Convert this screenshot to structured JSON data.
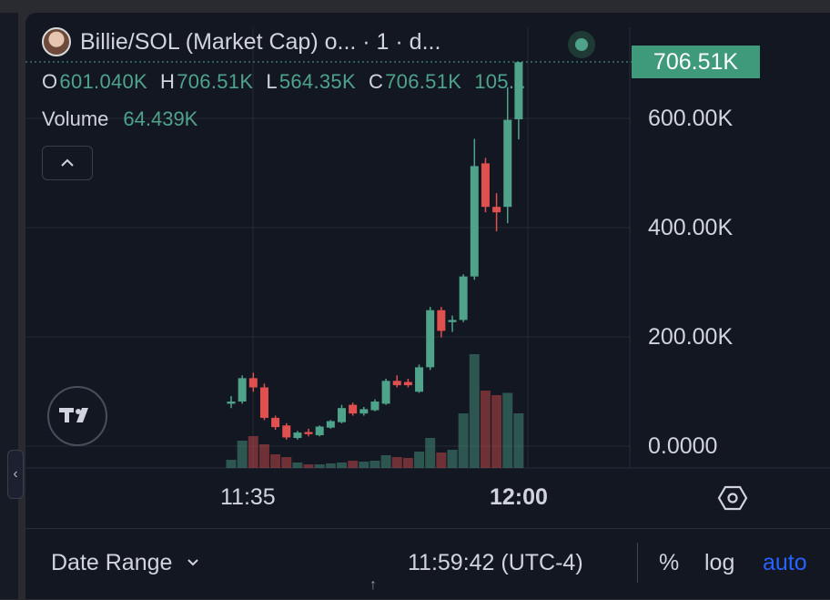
{
  "header": {
    "title": "Billie/SOL (Market Cap) o... · 1 · d...",
    "ohlc": [
      {
        "key": "O",
        "value": "601.040K"
      },
      {
        "key": "H",
        "value": "706.51K"
      },
      {
        "key": "L",
        "value": "564.35K"
      },
      {
        "key": "C",
        "value": "706.51K"
      },
      {
        "key": "",
        "value": "105..."
      }
    ],
    "volume_label": "Volume",
    "volume_value": "64.439K",
    "collapse_icon": "chevron-up-icon"
  },
  "price_tag": "706.51K",
  "y_axis": [
    "600.00K",
    "400.00K",
    "200.00K",
    "0.0000"
  ],
  "x_axis": [
    "11:35",
    "12:00"
  ],
  "bottom": {
    "date_range": "Date Range",
    "date_range_icon": "chevron-down-icon",
    "clock": "11:59:42 (UTC-4)",
    "percent": "%",
    "log": "log",
    "auto": "auto"
  },
  "colors": {
    "up": "#4fa38a",
    "down": "#e0504f",
    "background": "#131722",
    "accent": "#2962ff"
  },
  "chart_data": {
    "type": "candlestick",
    "series": [
      {
        "o": 78,
        "c": 82,
        "h": 92,
        "l": 70,
        "v": 18
      },
      {
        "o": 82,
        "c": 125,
        "h": 130,
        "l": 78,
        "v": 60
      },
      {
        "o": 125,
        "c": 108,
        "h": 135,
        "l": 100,
        "v": 70
      },
      {
        "o": 108,
        "c": 52,
        "h": 115,
        "l": 48,
        "v": 52
      },
      {
        "o": 52,
        "c": 35,
        "h": 56,
        "l": 30,
        "v": 30
      },
      {
        "o": 38,
        "c": 16,
        "h": 42,
        "l": 12,
        "v": 24
      },
      {
        "o": 15,
        "c": 25,
        "h": 28,
        "l": 12,
        "v": 12
      },
      {
        "o": 26,
        "c": 22,
        "h": 32,
        "l": 18,
        "v": 8
      },
      {
        "o": 20,
        "c": 36,
        "h": 38,
        "l": 18,
        "v": 8
      },
      {
        "o": 34,
        "c": 46,
        "h": 48,
        "l": 32,
        "v": 10
      },
      {
        "o": 44,
        "c": 70,
        "h": 76,
        "l": 42,
        "v": 12
      },
      {
        "o": 76,
        "c": 60,
        "h": 80,
        "l": 56,
        "v": 16
      },
      {
        "o": 60,
        "c": 68,
        "h": 72,
        "l": 56,
        "v": 14
      },
      {
        "o": 66,
        "c": 82,
        "h": 86,
        "l": 64,
        "v": 16
      },
      {
        "o": 78,
        "c": 120,
        "h": 124,
        "l": 76,
        "v": 28
      },
      {
        "o": 120,
        "c": 112,
        "h": 130,
        "l": 108,
        "v": 24
      },
      {
        "o": 118,
        "c": 112,
        "h": 124,
        "l": 108,
        "v": 22
      },
      {
        "o": 100,
        "c": 145,
        "h": 150,
        "l": 98,
        "v": 36
      },
      {
        "o": 145,
        "c": 250,
        "h": 256,
        "l": 140,
        "v": 66
      },
      {
        "o": 250,
        "c": 212,
        "h": 256,
        "l": 200,
        "v": 34
      },
      {
        "o": 228,
        "c": 232,
        "h": 240,
        "l": 210,
        "v": 40
      },
      {
        "o": 232,
        "c": 312,
        "h": 316,
        "l": 228,
        "v": 120
      },
      {
        "o": 312,
        "c": 515,
        "h": 565,
        "l": 306,
        "v": 250
      },
      {
        "o": 520,
        "c": 440,
        "h": 530,
        "l": 430,
        "v": 170
      },
      {
        "o": 440,
        "c": 430,
        "h": 465,
        "l": 395,
        "v": 160
      },
      {
        "o": 440,
        "c": 600,
        "h": 660,
        "l": 410,
        "v": 165
      },
      {
        "o": 601,
        "c": 706,
        "h": 706,
        "l": 564,
        "v": 120
      }
    ],
    "y_range": [
      0,
      706.51
    ],
    "x_ticks": [
      "11:35",
      "12:00"
    ],
    "grid": true
  }
}
